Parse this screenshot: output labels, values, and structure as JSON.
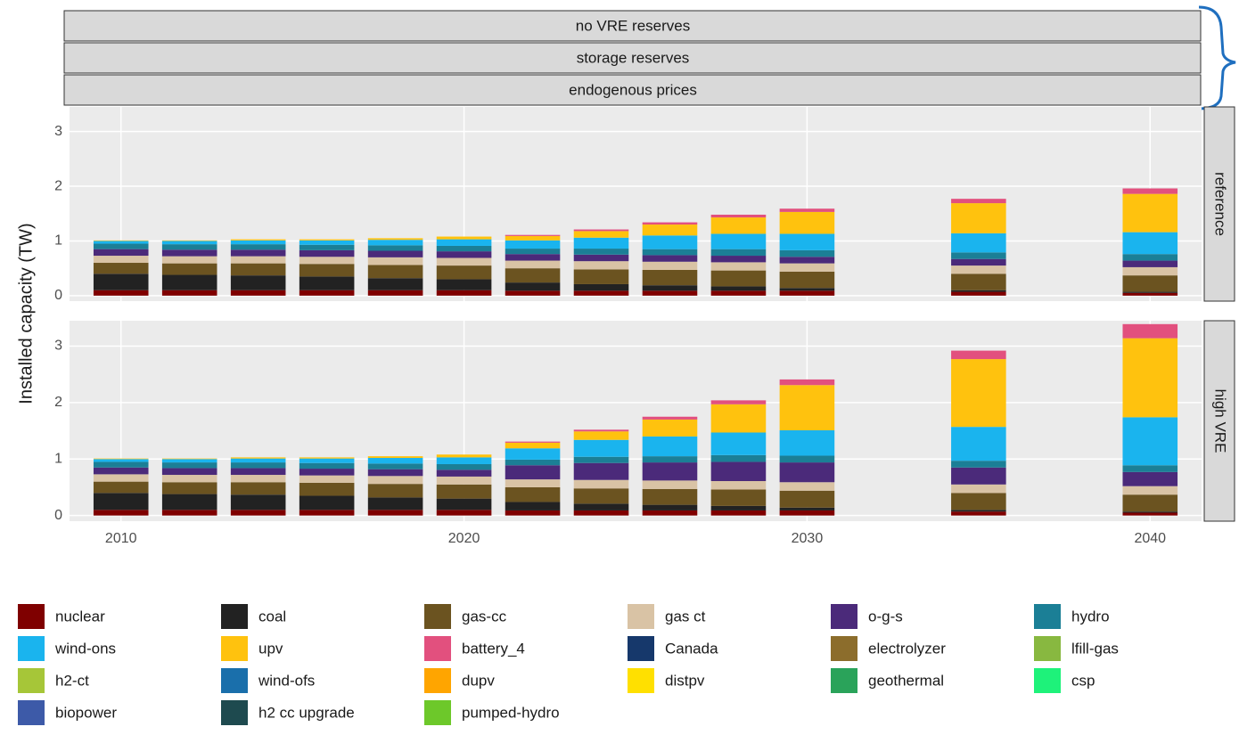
{
  "strips": [
    "no VRE reserves",
    "storage reserves",
    "endogenous prices"
  ],
  "chart_data": {
    "type": "bar",
    "y_label": "Installed capacity (TW)",
    "facets": [
      "reference",
      "high VRE"
    ],
    "x": [
      2010,
      2012,
      2014,
      2016,
      2018,
      2020,
      2022,
      2024,
      2026,
      2028,
      2030,
      2035,
      2040
    ],
    "xlim": [
      2008.5,
      2041.5
    ],
    "xticks": [
      2010,
      2020,
      2030,
      2040
    ],
    "ylim": [
      -0.1,
      3.45
    ],
    "yticks": [
      0,
      1,
      2,
      3
    ],
    "grid": true,
    "series": [
      {
        "name": "nuclear",
        "color": "#7f0000",
        "values": [
          [
            0.1,
            0.1,
            0.1,
            0.1,
            0.1,
            0.1,
            0.09,
            0.09,
            0.09,
            0.09,
            0.09,
            0.07,
            0.05
          ],
          [
            0.1,
            0.1,
            0.1,
            0.1,
            0.1,
            0.1,
            0.09,
            0.09,
            0.09,
            0.09,
            0.09,
            0.07,
            0.05
          ]
        ]
      },
      {
        "name": "coal",
        "color": "#222222",
        "values": [
          [
            0.3,
            0.28,
            0.27,
            0.25,
            0.22,
            0.2,
            0.15,
            0.12,
            0.1,
            0.08,
            0.05,
            0.03,
            0.02
          ],
          [
            0.3,
            0.28,
            0.27,
            0.25,
            0.22,
            0.2,
            0.15,
            0.12,
            0.1,
            0.08,
            0.05,
            0.03,
            0.02
          ]
        ]
      },
      {
        "name": "gas-cc",
        "color": "#6b5320",
        "values": [
          [
            0.2,
            0.21,
            0.22,
            0.23,
            0.24,
            0.25,
            0.26,
            0.27,
            0.28,
            0.29,
            0.3,
            0.3,
            0.3
          ],
          [
            0.2,
            0.21,
            0.22,
            0.23,
            0.24,
            0.25,
            0.26,
            0.27,
            0.28,
            0.29,
            0.3,
            0.3,
            0.3
          ]
        ]
      },
      {
        "name": "gas ct",
        "color": "#d9c3a5",
        "values": [
          [
            0.13,
            0.13,
            0.13,
            0.13,
            0.14,
            0.14,
            0.14,
            0.15,
            0.15,
            0.15,
            0.15,
            0.15,
            0.15
          ],
          [
            0.13,
            0.13,
            0.13,
            0.13,
            0.14,
            0.14,
            0.14,
            0.15,
            0.15,
            0.15,
            0.15,
            0.15,
            0.15
          ]
        ]
      },
      {
        "name": "o-g-s",
        "color": "#4b2a7a",
        "values": [
          [
            0.12,
            0.12,
            0.12,
            0.12,
            0.12,
            0.12,
            0.12,
            0.12,
            0.12,
            0.12,
            0.12,
            0.12,
            0.12
          ],
          [
            0.12,
            0.12,
            0.12,
            0.12,
            0.12,
            0.12,
            0.25,
            0.3,
            0.32,
            0.34,
            0.35,
            0.3,
            0.25
          ]
        ]
      },
      {
        "name": "hydro",
        "color": "#1b7f96",
        "values": [
          [
            0.1,
            0.1,
            0.1,
            0.1,
            0.1,
            0.1,
            0.1,
            0.11,
            0.11,
            0.12,
            0.12,
            0.12,
            0.12
          ],
          [
            0.1,
            0.1,
            0.1,
            0.1,
            0.1,
            0.1,
            0.1,
            0.11,
            0.11,
            0.12,
            0.12,
            0.12,
            0.12
          ]
        ]
      },
      {
        "name": "wind-ons",
        "color": "#1ab4ee",
        "values": [
          [
            0.05,
            0.06,
            0.07,
            0.08,
            0.1,
            0.12,
            0.15,
            0.2,
            0.25,
            0.28,
            0.3,
            0.35,
            0.4
          ],
          [
            0.05,
            0.06,
            0.07,
            0.08,
            0.1,
            0.12,
            0.2,
            0.3,
            0.35,
            0.4,
            0.45,
            0.6,
            0.85
          ]
        ]
      },
      {
        "name": "upv",
        "color": "#ffc20e",
        "values": [
          [
            0.01,
            0.01,
            0.02,
            0.02,
            0.03,
            0.05,
            0.08,
            0.12,
            0.2,
            0.3,
            0.4,
            0.55,
            0.7
          ],
          [
            0.01,
            0.01,
            0.02,
            0.02,
            0.03,
            0.05,
            0.1,
            0.15,
            0.3,
            0.5,
            0.8,
            1.2,
            1.4
          ]
        ]
      },
      {
        "name": "battery_4",
        "color": "#e2507e",
        "values": [
          [
            0,
            0,
            0,
            0,
            0,
            0,
            0.02,
            0.03,
            0.04,
            0.05,
            0.06,
            0.08,
            0.1
          ],
          [
            0,
            0,
            0,
            0,
            0,
            0,
            0.02,
            0.03,
            0.05,
            0.07,
            0.1,
            0.15,
            0.25
          ]
        ]
      }
    ],
    "other_legend_entries": [
      {
        "name": "Canada",
        "color": "#16386b"
      },
      {
        "name": "electrolyzer",
        "color": "#8c6d2c"
      },
      {
        "name": "lfill-gas",
        "color": "#88b840"
      },
      {
        "name": "h2-ct",
        "color": "#a6c638"
      },
      {
        "name": "wind-ofs",
        "color": "#1a6fab"
      },
      {
        "name": "dupv",
        "color": "#ffa500"
      },
      {
        "name": "distpv",
        "color": "#ffe000"
      },
      {
        "name": "geothermal",
        "color": "#2aa35a"
      },
      {
        "name": "csp",
        "color": "#1ef27a"
      },
      {
        "name": "biopower",
        "color": "#3d5aa8"
      },
      {
        "name": "h2 cc upgrade",
        "color": "#1e4a4f"
      },
      {
        "name": "pumped-hydro",
        "color": "#6dc82a"
      }
    ]
  }
}
